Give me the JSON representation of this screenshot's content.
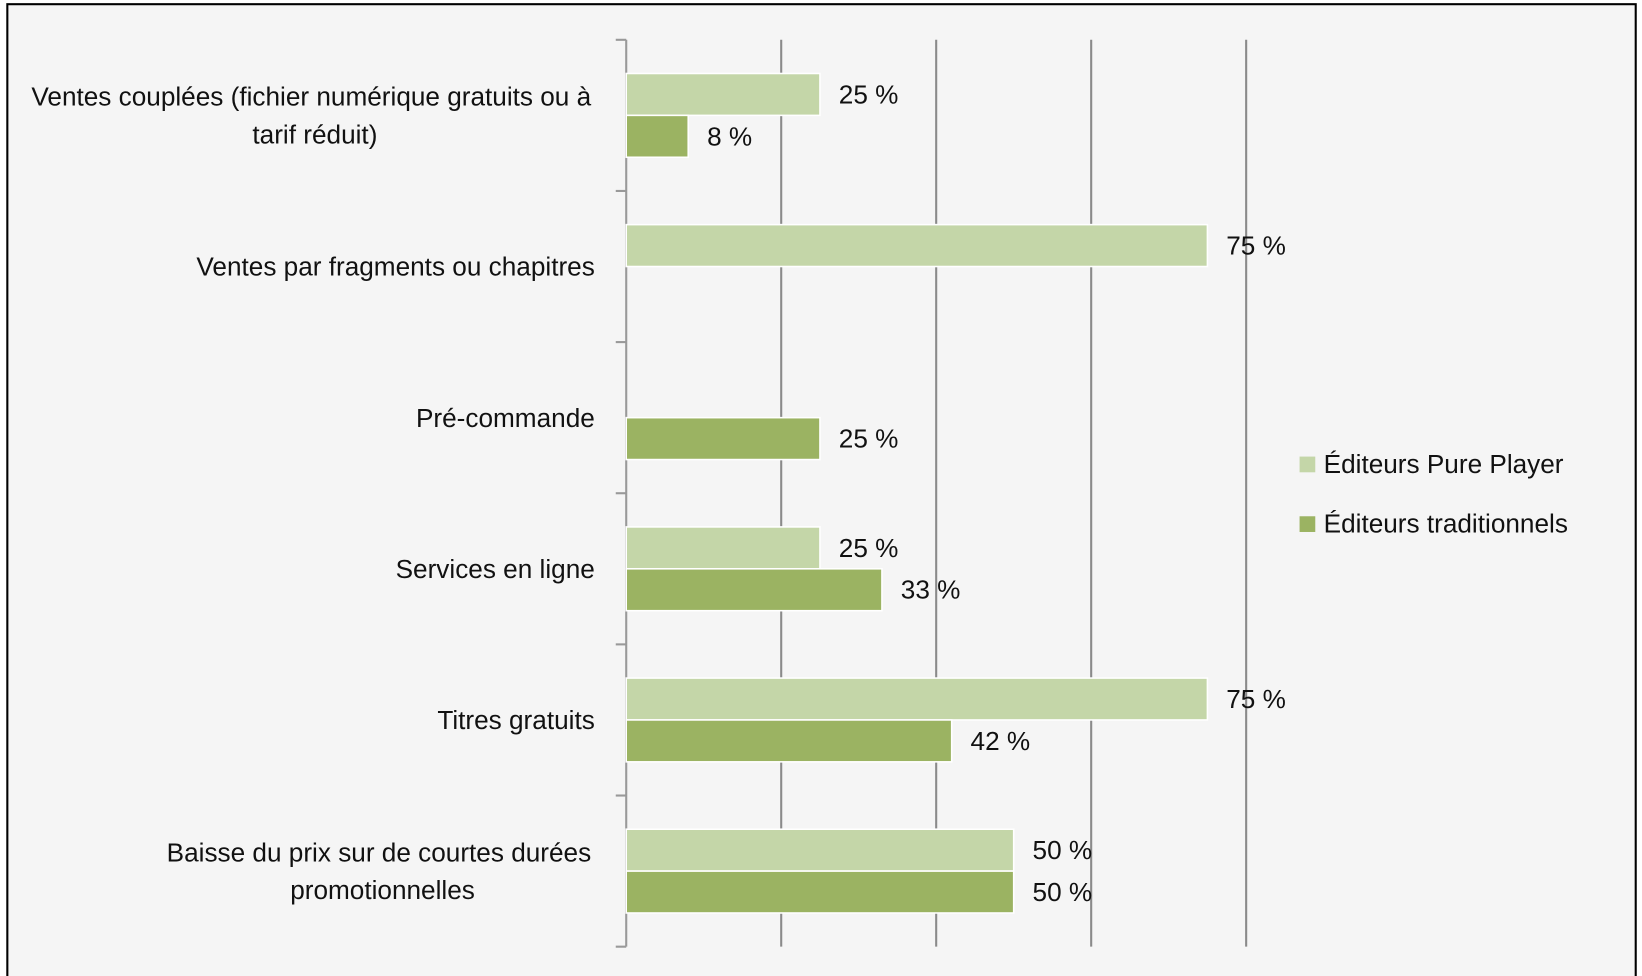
{
  "chart_data": {
    "type": "bar",
    "orientation": "horizontal",
    "categories": [
      "Ventes couplées (fichier numérique gratuits ou à tarif réduit)",
      "Ventes par fragments ou chapitres",
      "Pré-commande",
      "Services en ligne",
      "Titres gratuits",
      "Baisse du prix sur de courtes durées promotionnelles"
    ],
    "series": [
      {
        "name": "Éditeurs Pure Player",
        "color": "#c4d6a8",
        "values": [
          25,
          75,
          null,
          25,
          75,
          50
        ],
        "value_labels": [
          "25 %",
          "75 %",
          null,
          "25 %",
          "75 %",
          "50 %"
        ]
      },
      {
        "name": "Éditeurs traditionnels",
        "color": "#9bb362",
        "values": [
          8,
          null,
          25,
          33,
          42,
          50
        ],
        "value_labels": [
          "8 %",
          null,
          "25 %",
          "33 %",
          "42 %",
          "50 %"
        ]
      }
    ],
    "xlim": [
      0,
      80
    ],
    "xticks": [
      0,
      20,
      40,
      60,
      80
    ],
    "grid": true,
    "legend": "right"
  }
}
